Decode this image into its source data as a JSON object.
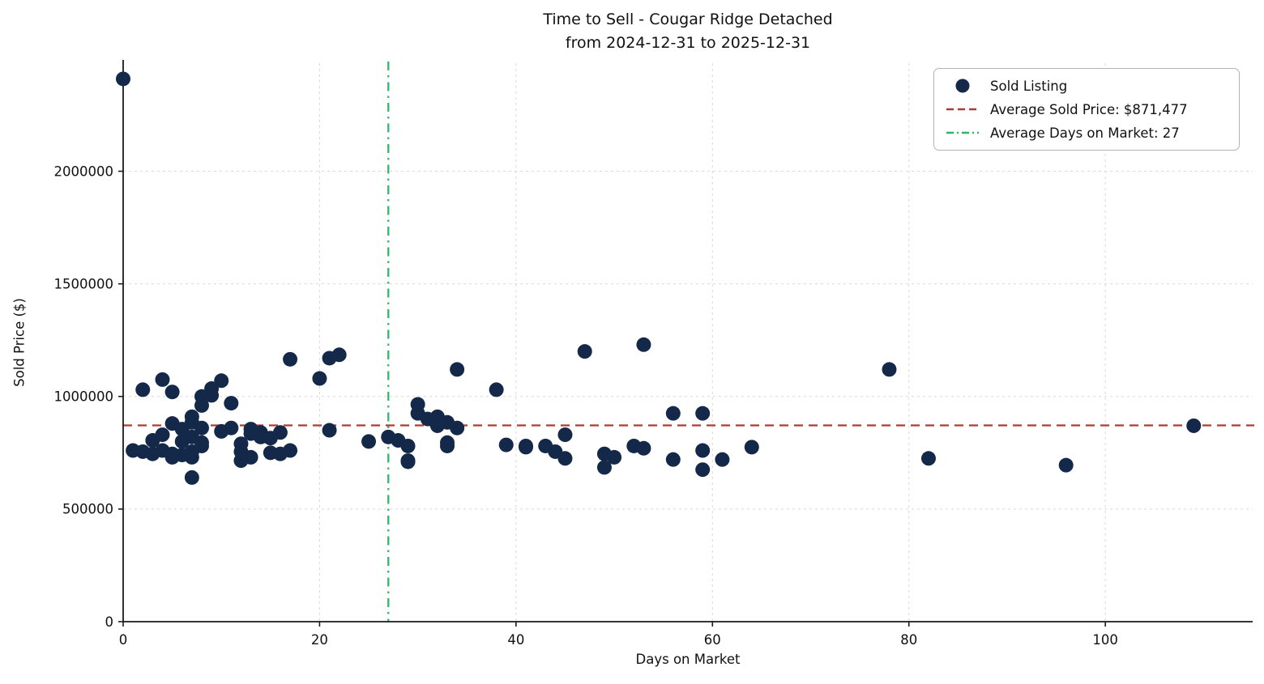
{
  "chart_data": {
    "type": "scatter",
    "title": "Time to Sell - Cougar Ridge Detached",
    "subtitle": "from 2024-12-31 to 2025-12-31",
    "xlabel": "Days on Market",
    "ylabel": "Sold Price ($)",
    "xlim": [
      0,
      115
    ],
    "ylim": [
      0,
      2480000
    ],
    "xticks": [
      0,
      20,
      40,
      60,
      80,
      100
    ],
    "yticks": [
      0,
      500000,
      1000000,
      1500000,
      2000000
    ],
    "grid": true,
    "avg_sold_price": 871477,
    "avg_days_on_market": 27,
    "legend": {
      "position": "upper right",
      "items": [
        {
          "label": "Sold Listing",
          "marker": "dot"
        },
        {
          "label": "Average Sold Price: $871,477",
          "marker": "dashed-line"
        },
        {
          "label": "Average Days on Market: 27",
          "marker": "dashdot-line"
        }
      ]
    },
    "colors": {
      "point": "#14294a",
      "avg_price_line": "#b03a2e",
      "avg_days_line": "#2eb868",
      "grid": "#d9d9d9",
      "axis": "#1a1a1a"
    },
    "points": [
      [
        0,
        2410000
      ],
      [
        2,
        1030000
      ],
      [
        1,
        760000
      ],
      [
        2,
        755000
      ],
      [
        3,
        805000
      ],
      [
        3,
        745000
      ],
      [
        4,
        1075000
      ],
      [
        4,
        830000
      ],
      [
        4,
        760000
      ],
      [
        5,
        1020000
      ],
      [
        5,
        880000
      ],
      [
        5,
        745000
      ],
      [
        5,
        730000
      ],
      [
        6,
        855000
      ],
      [
        6,
        800000
      ],
      [
        6,
        740000
      ],
      [
        7,
        910000
      ],
      [
        7,
        885000
      ],
      [
        7,
        820000
      ],
      [
        7,
        755000
      ],
      [
        7,
        730000
      ],
      [
        7,
        640000
      ],
      [
        8,
        1000000
      ],
      [
        8,
        960000
      ],
      [
        8,
        860000
      ],
      [
        8,
        795000
      ],
      [
        8,
        780000
      ],
      [
        9,
        1035000
      ],
      [
        9,
        1005000
      ],
      [
        10,
        1070000
      ],
      [
        10,
        845000
      ],
      [
        11,
        970000
      ],
      [
        11,
        860000
      ],
      [
        12,
        790000
      ],
      [
        12,
        755000
      ],
      [
        12,
        715000
      ],
      [
        13,
        855000
      ],
      [
        13,
        835000
      ],
      [
        13,
        730000
      ],
      [
        14,
        840000
      ],
      [
        14,
        820000
      ],
      [
        15,
        815000
      ],
      [
        15,
        750000
      ],
      [
        16,
        840000
      ],
      [
        16,
        745000
      ],
      [
        17,
        760000
      ],
      [
        17,
        1165000
      ],
      [
        20,
        1080000
      ],
      [
        21,
        1170000
      ],
      [
        21,
        850000
      ],
      [
        22,
        1185000
      ],
      [
        25,
        800000
      ],
      [
        27,
        820000
      ],
      [
        28,
        805000
      ],
      [
        29,
        780000
      ],
      [
        29,
        715000
      ],
      [
        29,
        710000
      ],
      [
        30,
        965000
      ],
      [
        30,
        925000
      ],
      [
        31,
        900000
      ],
      [
        32,
        910000
      ],
      [
        32,
        870000
      ],
      [
        33,
        885000
      ],
      [
        33,
        795000
      ],
      [
        33,
        780000
      ],
      [
        34,
        860000
      ],
      [
        34,
        1120000
      ],
      [
        38,
        1030000
      ],
      [
        39,
        785000
      ],
      [
        41,
        780000
      ],
      [
        41,
        775000
      ],
      [
        43,
        780000
      ],
      [
        44,
        755000
      ],
      [
        45,
        830000
      ],
      [
        45,
        725000
      ],
      [
        47,
        1200000
      ],
      [
        49,
        745000
      ],
      [
        49,
        685000
      ],
      [
        50,
        730000
      ],
      [
        52,
        780000
      ],
      [
        53,
        1230000
      ],
      [
        53,
        770000
      ],
      [
        56,
        925000
      ],
      [
        56,
        720000
      ],
      [
        59,
        925000
      ],
      [
        59,
        760000
      ],
      [
        59,
        675000
      ],
      [
        61,
        720000
      ],
      [
        64,
        775000
      ],
      [
        78,
        1120000
      ],
      [
        82,
        725000
      ],
      [
        96,
        695000
      ],
      [
        109,
        870000
      ]
    ]
  }
}
